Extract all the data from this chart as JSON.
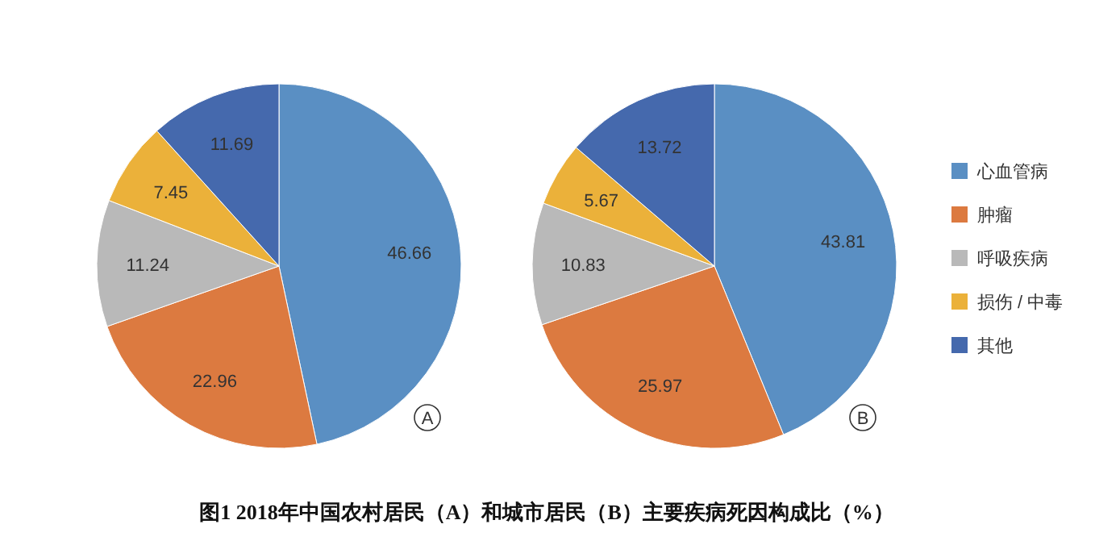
{
  "chart_data": [
    {
      "type": "pie",
      "title": "图1 2018年中国农村居民（A）和城市居民（B）主要疾病死因构成比（%）",
      "categories": [
        null,
        null,
        null,
        null,
        null
      ],
      "values": [
        46.66,
        22.96,
        11.24,
        7.45,
        11.69
      ],
      "colors": [
        "#5a8fc3",
        "#dc7a40",
        "#b9b9b9",
        "#ebb13a",
        "#4569ad"
      ],
      "data_labels": true,
      "annotations": [
        "A"
      ]
    },
    {
      "type": "pie",
      "categories": [
        "心血管病",
        "肿瘤",
        "呼吸疾病",
        "损伤 / 中毒",
        "其他"
      ],
      "values": [
        43.81,
        25.97,
        10.83,
        5.67,
        13.72
      ],
      "colors": [
        "#5a8fc3",
        "#dc7a40",
        "#b9b9b9",
        "#ebb13a",
        "#4569ad"
      ],
      "data_labels": true,
      "annotations": [
        "B"
      ],
      "legend": "right"
    }
  ]
}
